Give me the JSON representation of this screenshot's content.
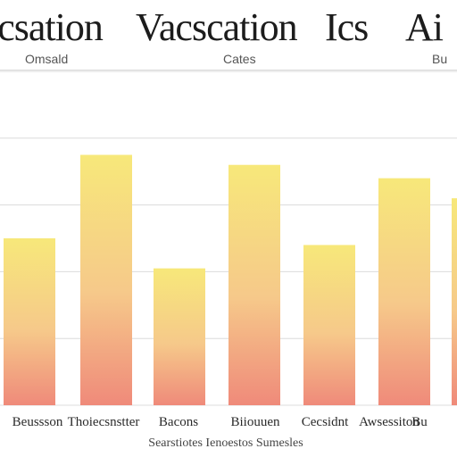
{
  "chart_data": {
    "type": "bar",
    "title": "Vacation Vacscation Ics Ai",
    "title_parts": [
      "icsation",
      "Vacscation",
      "Ics",
      "Ai"
    ],
    "subtitles": [
      "Omsald",
      "Cates",
      "Bu"
    ],
    "xlabel": "Searstiotes Ienoestos Sumesles",
    "ylabel": "",
    "categories": [
      "Beussson",
      "Thoiecsnstter",
      "Bacons",
      "Biiouuen",
      "Cecsidnt",
      "Awsessiton",
      "Bu"
    ],
    "values": [
      50,
      75,
      41,
      72,
      48,
      68,
      62
    ],
    "ylim": [
      0,
      100
    ],
    "grid": true,
    "colors": {
      "bar_top": "#f7e87a",
      "bar_mid": "#f6c98a",
      "bar_bottom": "#ef8a7a",
      "grid": "#dcdcdc"
    }
  }
}
